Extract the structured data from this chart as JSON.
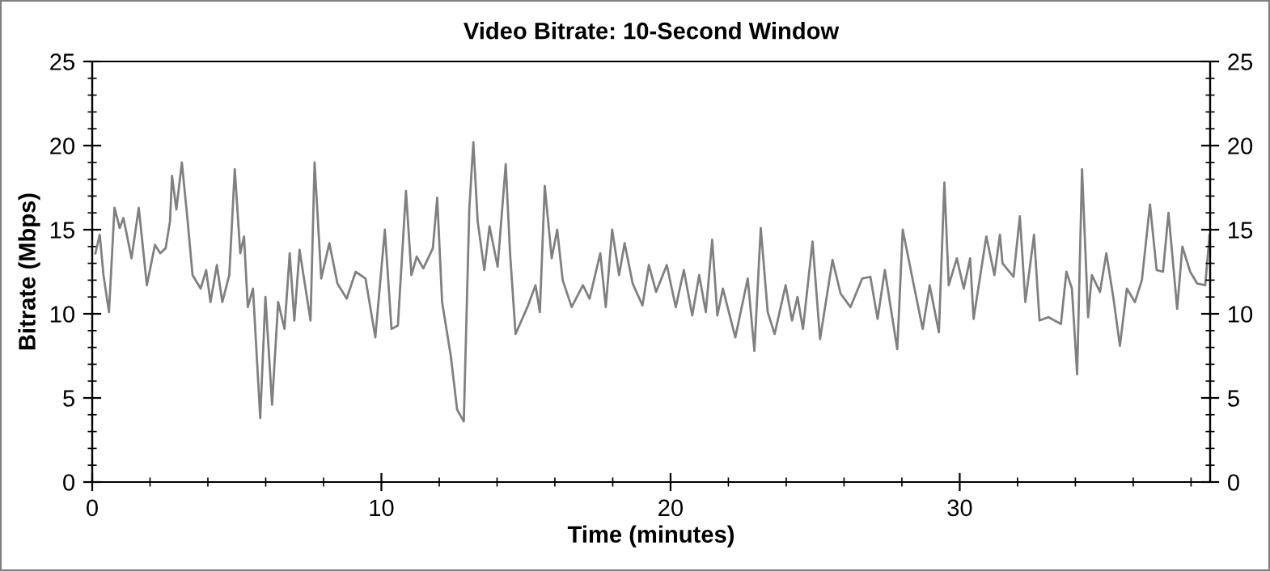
{
  "chart_data": {
    "type": "line",
    "title": "Video Bitrate: 10-Second Window",
    "xlabel": "Time (minutes)",
    "ylabel": "Bitrate (Mbps)",
    "xlim": [
      0,
      38.66
    ],
    "xticks": [
      0,
      10,
      20,
      30,
      {
        "value": 2,
        "label": null
      },
      {
        "value": 4,
        "label": null
      },
      {
        "value": 6,
        "label": null
      },
      {
        "value": 8,
        "label": null
      },
      {
        "value": 12,
        "label": null
      },
      {
        "value": 14,
        "label": null
      },
      {
        "value": 16,
        "label": null
      },
      {
        "value": 18,
        "label": null
      },
      {
        "value": 22,
        "label": null
      },
      {
        "value": 24,
        "label": null
      },
      {
        "value": 26,
        "label": null
      },
      {
        "value": 28,
        "label": null
      },
      {
        "value": 32,
        "label": null
      },
      {
        "value": 34,
        "label": null
      },
      {
        "value": 36,
        "label": null
      },
      {
        "value": 38,
        "label": null
      }
    ],
    "ylim": [
      0,
      25
    ],
    "yticks": [
      0,
      5,
      10,
      15,
      20,
      25,
      {
        "value": 1,
        "label": null
      },
      {
        "value": 2,
        "label": null
      },
      {
        "value": 3,
        "label": null
      },
      {
        "value": 4,
        "label": null
      },
      {
        "value": 6,
        "label": null
      },
      {
        "value": 7,
        "label": null
      },
      {
        "value": 8,
        "label": null
      },
      {
        "value": 9,
        "label": null
      },
      {
        "value": 11,
        "label": null
      },
      {
        "value": 12,
        "label": null
      },
      {
        "value": 13,
        "label": null
      },
      {
        "value": 14,
        "label": null
      },
      {
        "value": 16,
        "label": null
      },
      {
        "value": 17,
        "label": null
      },
      {
        "value": 18,
        "label": null
      },
      {
        "value": 19,
        "label": null
      },
      {
        "value": 21,
        "label": null
      },
      {
        "value": 22,
        "label": null
      },
      {
        "value": 23,
        "label": null
      },
      {
        "value": 24,
        "label": null
      }
    ],
    "y2lim": [
      0,
      25
    ],
    "y2ticks": [
      0,
      5,
      10,
      15,
      20,
      25,
      {
        "value": 1,
        "label": null
      },
      {
        "value": 2,
        "label": null
      },
      {
        "value": 3,
        "label": null
      },
      {
        "value": 4,
        "label": null
      },
      {
        "value": 6,
        "label": null
      },
      {
        "value": 7,
        "label": null
      },
      {
        "value": 8,
        "label": null
      },
      {
        "value": 9,
        "label": null
      },
      {
        "value": 11,
        "label": null
      },
      {
        "value": 12,
        "label": null
      },
      {
        "value": 13,
        "label": null
      },
      {
        "value": 14,
        "label": null
      },
      {
        "value": 16,
        "label": null
      },
      {
        "value": 17,
        "label": null
      },
      {
        "value": 18,
        "label": null
      },
      {
        "value": 19,
        "label": null
      },
      {
        "value": 21,
        "label": null
      },
      {
        "value": 22,
        "label": null
      },
      {
        "value": 23,
        "label": null
      },
      {
        "value": 24,
        "label": null
      }
    ],
    "marker": "none",
    "line_style": "solid",
    "series": [
      {
        "color": "#808080",
        "x": [
          0.11,
          0.26,
          0.39,
          0.58,
          0.77,
          0.95,
          1.08,
          1.36,
          1.61,
          1.89,
          2.17,
          2.35,
          2.54,
          2.69,
          2.76,
          2.91,
          3.1,
          3.29,
          3.47,
          3.75,
          3.94,
          4.09,
          4.31,
          4.5,
          4.74,
          4.93,
          5.12,
          5.25,
          5.38,
          5.56,
          5.81,
          5.99,
          6.22,
          6.43,
          6.65,
          6.83,
          6.99,
          7.17,
          7.55,
          7.69,
          7.92,
          8.2,
          8.48,
          8.8,
          9.11,
          9.45,
          9.79,
          10.12,
          10.35,
          10.57,
          10.85,
          11.04,
          11.22,
          11.45,
          11.78,
          11.93,
          12.1,
          12.4,
          12.62,
          12.85,
          13.04,
          13.18,
          13.33,
          13.56,
          13.74,
          14.02,
          14.3,
          14.45,
          14.64,
          15.05,
          15.33,
          15.48,
          15.65,
          15.89,
          16.08,
          16.27,
          16.58,
          16.97,
          17.2,
          17.57,
          17.76,
          17.98,
          18.22,
          18.41,
          18.69,
          19.03,
          19.25,
          19.5,
          19.87,
          20.18,
          20.46,
          20.75,
          20.99,
          21.22,
          21.44,
          21.62,
          21.81,
          22.24,
          22.67,
          22.9,
          23.12,
          23.36,
          23.6,
          23.98,
          24.2,
          24.39,
          24.58,
          24.91,
          25.17,
          25.6,
          25.88,
          26.22,
          26.63,
          26.91,
          27.16,
          27.41,
          27.84,
          28.03,
          28.4,
          28.72,
          28.96,
          29.28,
          29.47,
          29.62,
          29.9,
          30.14,
          30.36,
          30.48,
          30.92,
          31.2,
          31.39,
          31.48,
          31.86,
          32.08,
          32.27,
          32.57,
          32.76,
          33.07,
          33.5,
          33.69,
          33.88,
          34.06,
          34.23,
          34.44,
          34.57,
          34.85,
          35.07,
          35.31,
          35.54,
          35.78,
          36.06,
          36.3,
          36.58,
          36.81,
          37.03,
          37.22,
          37.52,
          37.7,
          37.97,
          38.21,
          38.49,
          38.64
        ],
        "values": [
          13.6,
          14.7,
          12.3,
          10.1,
          16.3,
          15.1,
          15.7,
          13.3,
          16.3,
          11.7,
          14.1,
          13.6,
          13.9,
          15.5,
          18.2,
          16.2,
          19.0,
          15.7,
          12.3,
          11.5,
          12.6,
          10.7,
          12.9,
          10.7,
          12.3,
          18.6,
          13.6,
          14.6,
          10.4,
          11.5,
          3.8,
          11.0,
          4.6,
          10.7,
          9.1,
          13.6,
          9.6,
          13.8,
          9.6,
          19.0,
          12.1,
          14.2,
          11.8,
          10.9,
          12.5,
          12.1,
          8.6,
          15.0,
          9.1,
          9.3,
          17.3,
          12.3,
          13.4,
          12.7,
          13.9,
          16.9,
          10.7,
          7.5,
          4.3,
          3.6,
          16.2,
          20.2,
          15.5,
          12.6,
          15.2,
          12.8,
          18.9,
          13.6,
          8.8,
          10.4,
          11.7,
          10.1,
          17.6,
          13.3,
          15.0,
          12.0,
          10.4,
          11.7,
          10.9,
          13.6,
          10.4,
          15.0,
          12.3,
          14.2,
          11.8,
          10.5,
          12.9,
          11.3,
          12.9,
          10.4,
          12.6,
          9.9,
          12.3,
          10.1,
          14.4,
          9.9,
          11.5,
          8.6,
          12.1,
          7.8,
          15.1,
          10.1,
          8.8,
          11.7,
          9.6,
          11.0,
          9.1,
          14.3,
          8.5,
          13.2,
          11.2,
          10.4,
          12.1,
          12.2,
          9.7,
          12.6,
          7.9,
          15.0,
          11.8,
          9.1,
          11.7,
          8.9,
          17.8,
          11.7,
          13.3,
          11.5,
          13.3,
          9.7,
          14.6,
          12.3,
          14.7,
          13.0,
          12.2,
          15.8,
          10.7,
          14.7,
          9.6,
          9.8,
          9.4,
          12.5,
          11.5,
          6.4,
          18.6,
          9.8,
          12.3,
          11.3,
          13.6,
          11.0,
          8.1,
          11.5,
          10.7,
          12.0,
          16.5,
          12.6,
          12.5,
          16.0,
          10.3,
          14.0,
          12.5,
          11.8,
          11.7,
          14.7
        ]
      }
    ]
  }
}
